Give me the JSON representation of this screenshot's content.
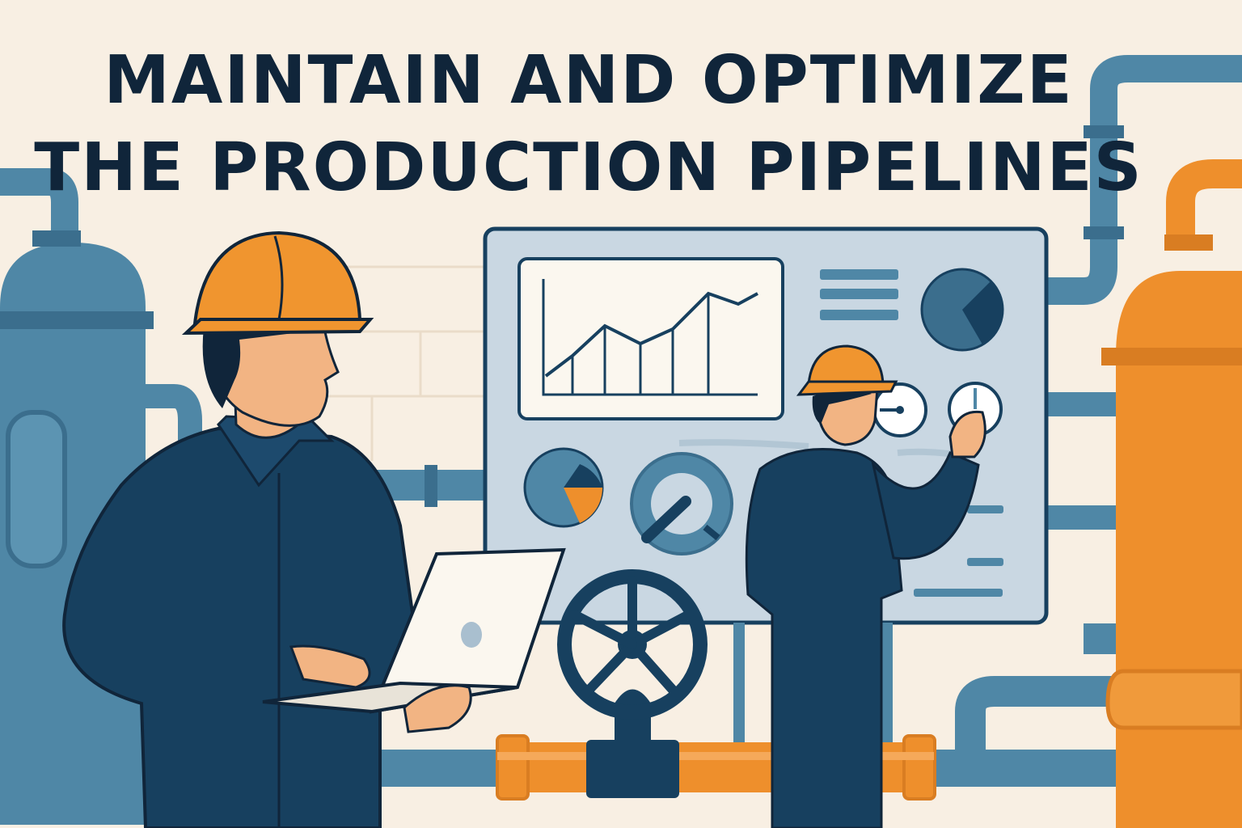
{
  "headline": {
    "line1": "MAINTAIN AND OPTIMIZE",
    "line2": "THE PRODUCTION PIPELINES"
  },
  "colors": {
    "background": "#f8efe3",
    "pipe_blue": "#4f87a6",
    "pipe_blue_dark": "#3b6e8d",
    "pipe_orange": "#ee8f2c",
    "navy": "#17405f",
    "ink": "#10253a",
    "panel": "#c9d7e2",
    "skin": "#f2b483",
    "hardhat": "#f0952f"
  },
  "illustration": {
    "elements": [
      "blue-tank-icon",
      "orange-tank-icon",
      "valve-wheel-icon",
      "control-panel",
      "line-chart-icon",
      "pie-chart-icon",
      "gauge-icon",
      "engineer-with-laptop",
      "engineer-at-panel"
    ]
  }
}
